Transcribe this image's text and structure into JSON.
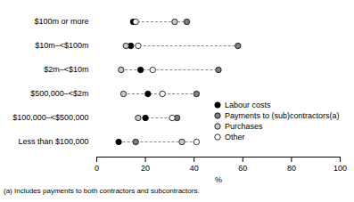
{
  "chart_data": {
    "type": "dot",
    "categories": [
      "$100m or more",
      "$10m–<$100m",
      "$2m–<$10m",
      "$500,000–<$2m",
      "$100,000–<$500,000",
      "Less than $100,000"
    ],
    "series": [
      {
        "name": "Labour costs",
        "color": "#000000",
        "marker": "circle",
        "values": [
          15,
          14,
          18,
          21,
          20,
          9
        ]
      },
      {
        "name": "Payments to (sub)contractors(a)",
        "color": "#808080",
        "marker": "circle",
        "values": [
          37,
          58,
          50,
          41,
          33,
          16
        ]
      },
      {
        "name": "Purchases",
        "color": "#c8c8c8",
        "marker": "circle",
        "values": [
          32,
          12,
          10,
          11,
          17,
          35
        ]
      },
      {
        "name": "Other",
        "color": "#ffffff",
        "marker": "circle",
        "values": [
          16,
          17,
          23,
          27,
          31,
          41
        ]
      }
    ],
    "xlabel": "%",
    "xlim": [
      0,
      100
    ],
    "xticks": [
      0,
      20,
      40,
      60,
      80,
      100
    ],
    "orientation": "horizontal",
    "legend": "bottom-right",
    "grid": false,
    "caption": "(a) Includes payments to both contractors and subcontractors."
  }
}
